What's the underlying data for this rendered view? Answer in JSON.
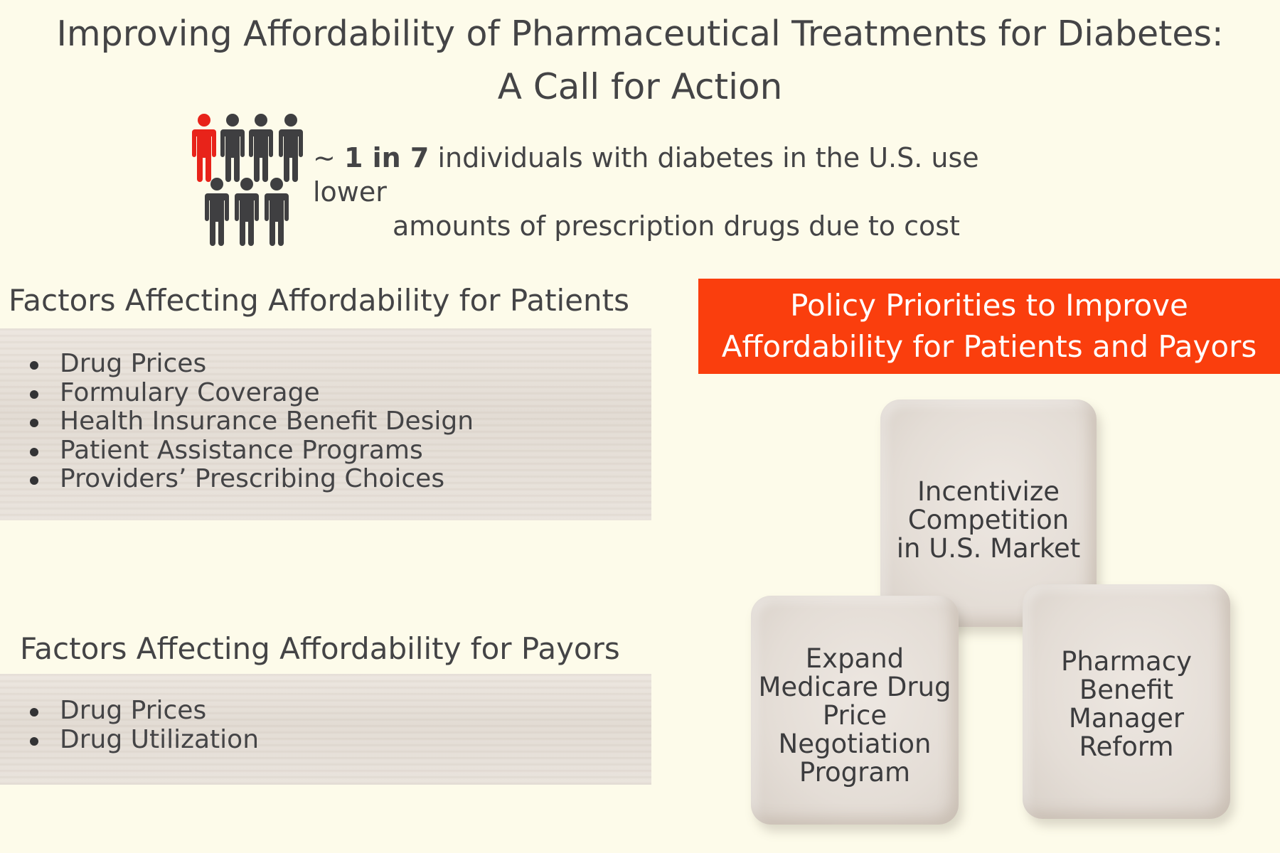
{
  "title": {
    "line1": "Improving Affordability of Pharmaceutical Treatments for Diabetes:",
    "line2": "A Call for Action"
  },
  "stat": {
    "prefix": "~",
    "ratio": "1 in 7",
    "line1_rest": "individuals with diabetes in the U.S. use lower",
    "line2": "amounts of prescription drugs due to cost",
    "highlight_color": "#e8231a",
    "figure_color": "#3f3f41"
  },
  "patients": {
    "heading": "Factors Affecting Affordability for Patients",
    "items": [
      "Drug Prices",
      "Formulary Coverage",
      "Health Insurance Benefit Design",
      "Patient Assistance Programs",
      "Providers’ Prescribing Choices"
    ]
  },
  "payors": {
    "heading": "Factors Affecting Affordability for Payors",
    "items": [
      "Drug Prices",
      "Drug Utilization"
    ]
  },
  "policy": {
    "line1": "Policy Priorities to Improve",
    "line2": "Affordability for Patients and Payors",
    "color": "#fa3e0d"
  },
  "blocks": {
    "top": "Incentivize\nCompetition\nin U.S. Market",
    "left": "Expand\nMedicare Drug\nPrice\nNegotiation\nProgram",
    "right": "Pharmacy\nBenefit\nManager\nReform"
  }
}
